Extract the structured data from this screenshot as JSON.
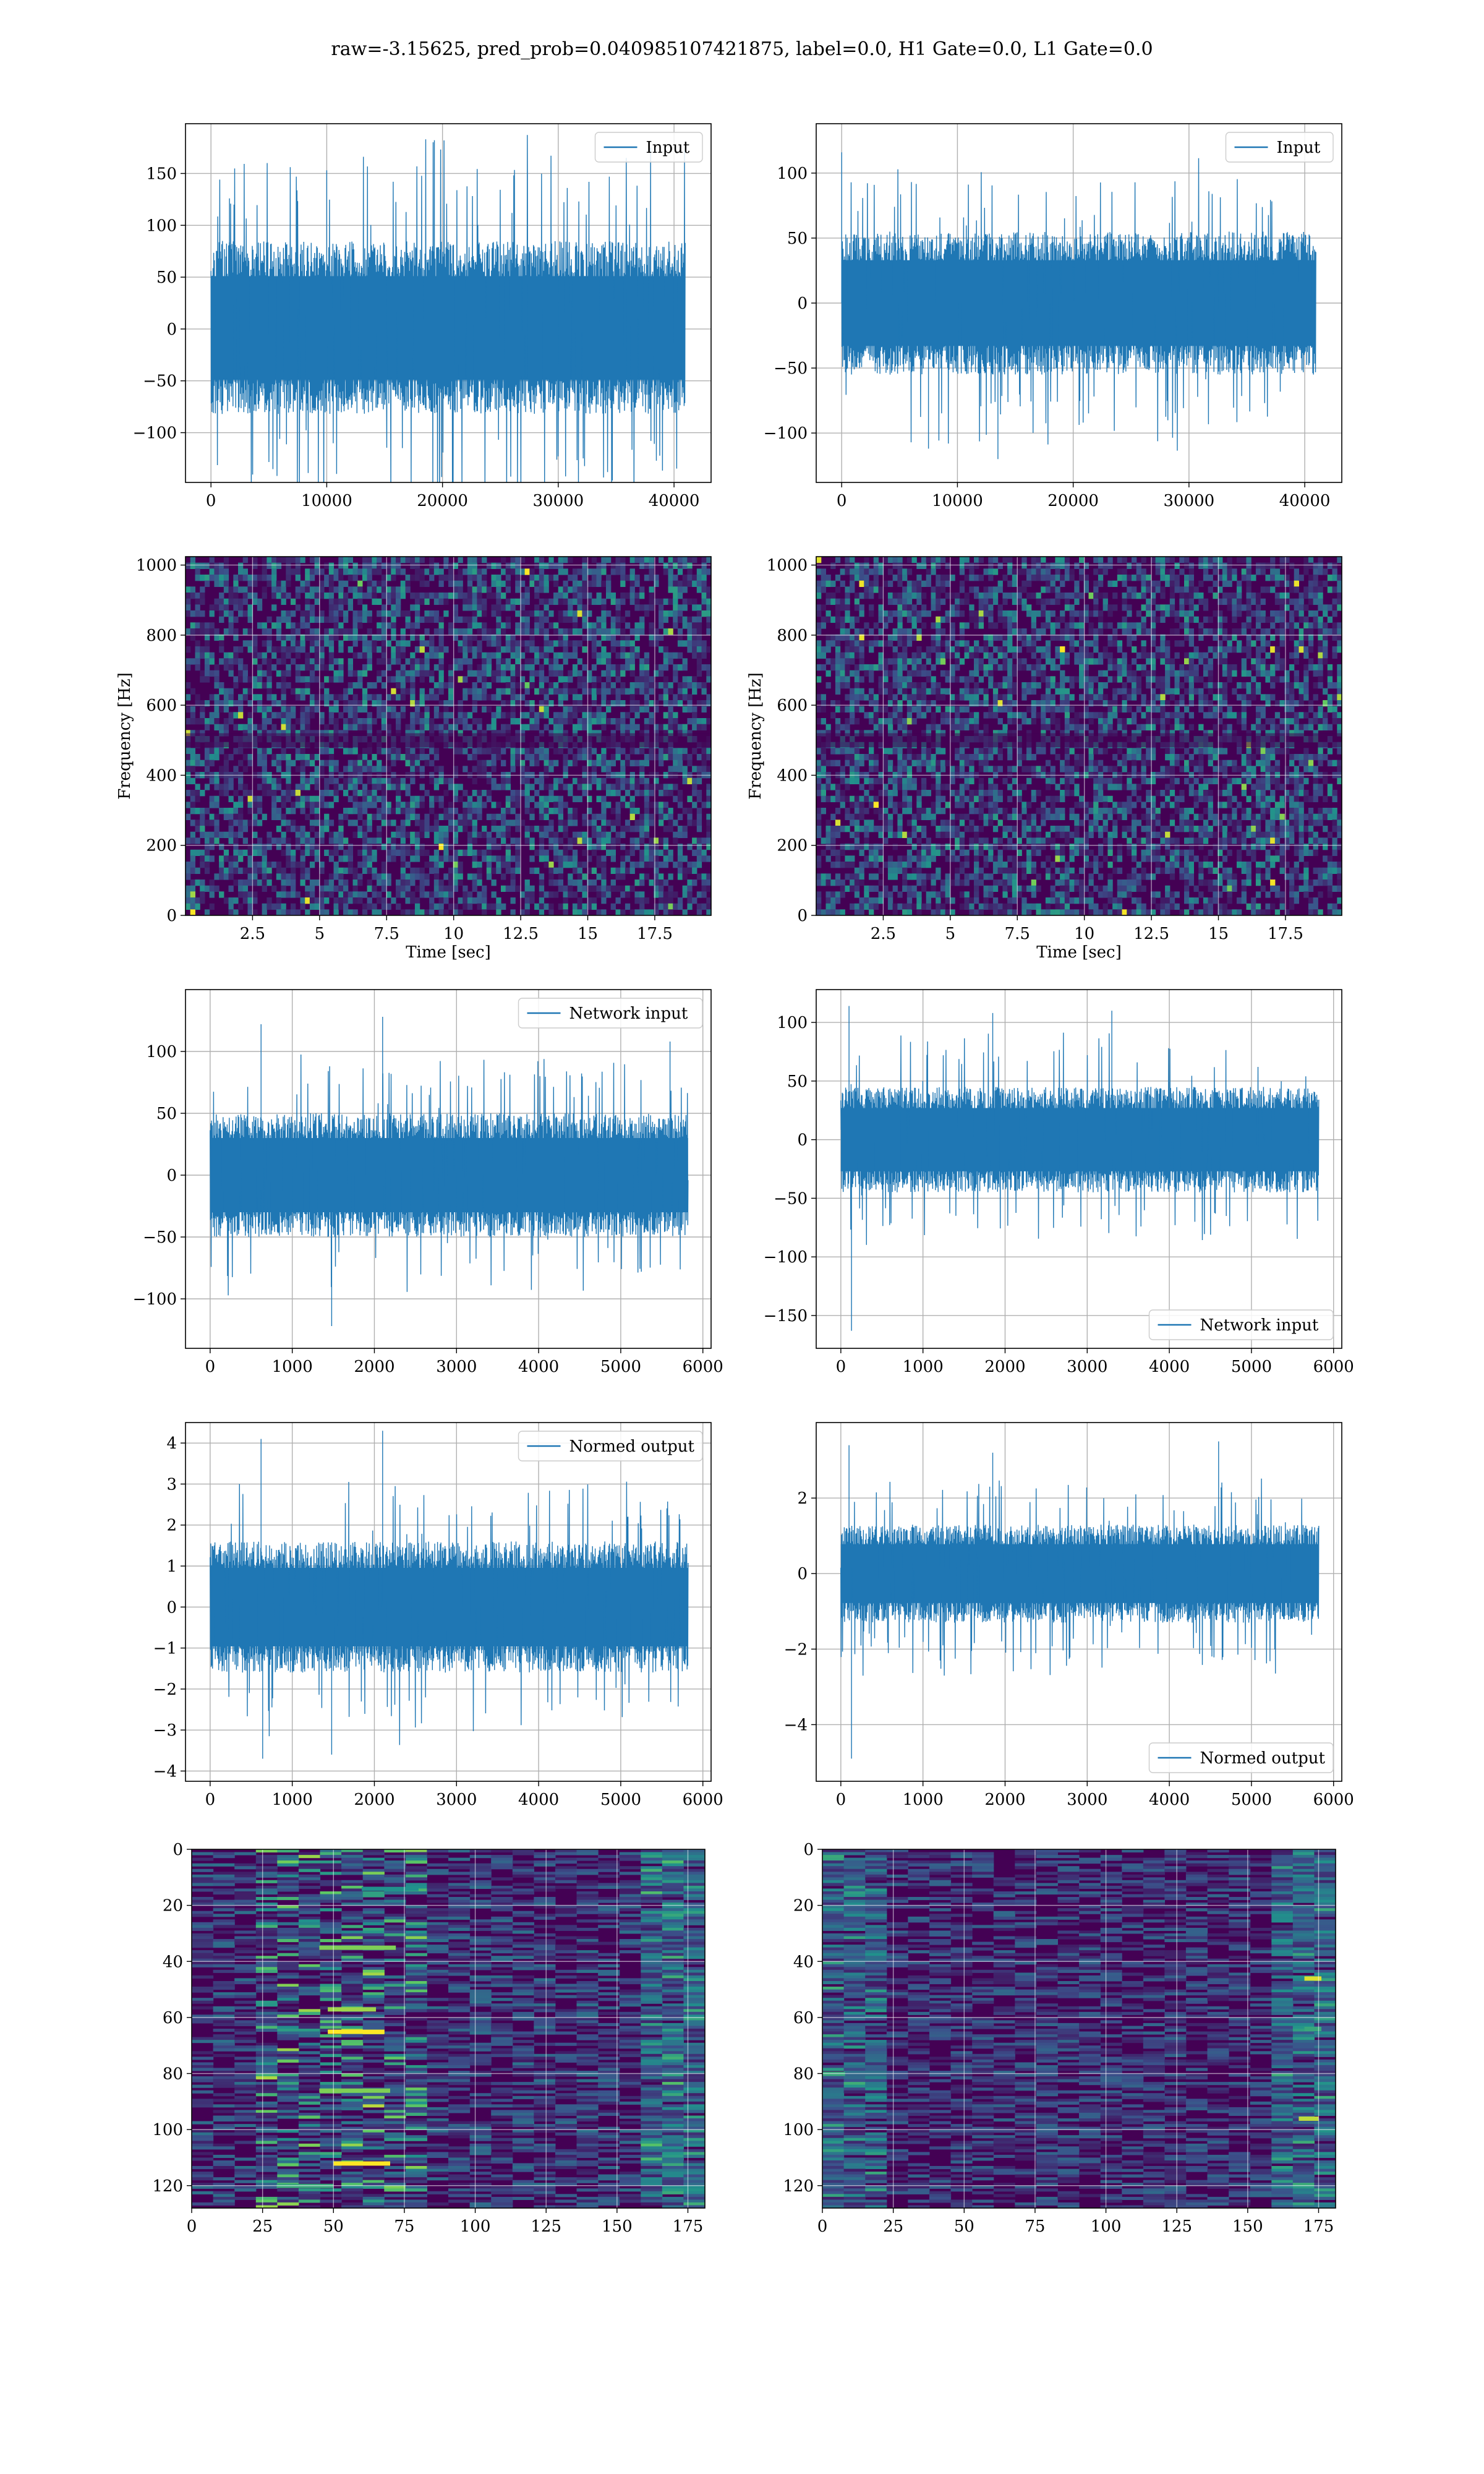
{
  "figure": {
    "title": "raw=-3.15625, pred_prob=0.040985107421875, label=0.0, H1 Gate=0.0, L1 Gate=0.0"
  },
  "colors": {
    "line": "#1f77b4",
    "viridis_dark": "#440154",
    "viridis_mid": "#21918c",
    "viridis_bright": "#fde725"
  },
  "chart_data": [
    {
      "id": "input-h1",
      "type": "line",
      "series_name": "Input",
      "legend": "upper-right",
      "x_range": [
        0,
        40960
      ],
      "y_range": [
        -130,
        185
      ],
      "xlim": [
        -2200,
        43200
      ],
      "ylim": [
        -148,
        198
      ],
      "envelope_hi": 85,
      "envelope_lo": -82,
      "noise_extreme": 110,
      "xticks": [
        0,
        10000,
        20000,
        30000,
        40000
      ],
      "yticks": [
        -100,
        -50,
        0,
        50,
        100,
        150
      ],
      "spikes": [
        [
          10000,
          153
        ],
        [
          19300,
          182
        ],
        [
          1600,
          126
        ],
        [
          26000,
          112
        ]
      ],
      "xlabel": "",
      "ylabel": "",
      "grid": true
    },
    {
      "id": "input-l1",
      "type": "line",
      "series_name": "Input",
      "legend": "upper-right",
      "x_range": [
        0,
        40960
      ],
      "y_range": [
        -122,
        117
      ],
      "xlim": [
        -2200,
        43200
      ],
      "ylim": [
        -138,
        138
      ],
      "envelope_hi": 55,
      "envelope_lo": -55,
      "noise_extreme": 60,
      "xticks": [
        0,
        10000,
        20000,
        30000,
        40000
      ],
      "yticks": [
        -100,
        -50,
        0,
        50,
        100
      ],
      "spikes": [
        [
          0,
          116
        ],
        [
          7500,
          -112
        ],
        [
          13500,
          -120
        ]
      ],
      "xlabel": "",
      "ylabel": "",
      "grid": true
    },
    {
      "id": "spectrogram-h1",
      "type": "heatmap",
      "seed": 7,
      "xlim": [
        0,
        19.6
      ],
      "ylim": [
        0,
        1024
      ],
      "xticks": [
        2.5,
        5.0,
        7.5,
        10.0,
        12.5,
        15.0,
        17.5
      ],
      "yticks": [
        0,
        200,
        400,
        600,
        800,
        1000
      ],
      "xlabel": "Time [sec]",
      "ylabel": "Frequency [Hz]",
      "grid": true
    },
    {
      "id": "spectrogram-l1",
      "type": "heatmap",
      "seed": 19,
      "xlim": [
        0,
        19.6
      ],
      "ylim": [
        0,
        1024
      ],
      "xticks": [
        2.5,
        5.0,
        7.5,
        10.0,
        12.5,
        15.0,
        17.5
      ],
      "yticks": [
        0,
        200,
        400,
        600,
        800,
        1000
      ],
      "xlabel": "Time [sec]",
      "ylabel": "Frequency [Hz]",
      "grid": true
    },
    {
      "id": "network-input-h1",
      "type": "line",
      "series_name": "Network input",
      "legend": "upper-right",
      "x_range": [
        0,
        5820
      ],
      "y_range": [
        -125,
        128
      ],
      "xlim": [
        -300,
        6100
      ],
      "ylim": [
        -140,
        150
      ],
      "envelope_hi": 50,
      "envelope_lo": -50,
      "noise_extreme": 55,
      "xticks": [
        0,
        1000,
        2000,
        3000,
        4000,
        5000,
        6000
      ],
      "yticks": [
        -100,
        -50,
        0,
        50,
        100
      ],
      "spikes": [
        [
          2100,
          128
        ],
        [
          620,
          122
        ],
        [
          1480,
          -122
        ],
        [
          5600,
          108
        ]
      ],
      "xlabel": "",
      "ylabel": "",
      "grid": true
    },
    {
      "id": "network-input-l1",
      "type": "line",
      "series_name": "Network input",
      "legend": "lower-right",
      "x_range": [
        0,
        5820
      ],
      "y_range": [
        -165,
        115
      ],
      "xlim": [
        -300,
        6100
      ],
      "ylim": [
        -178,
        128
      ],
      "envelope_hi": 45,
      "envelope_lo": -45,
      "noise_extreme": 50,
      "xticks": [
        0,
        1000,
        2000,
        3000,
        4000,
        5000,
        6000
      ],
      "yticks": [
        -150,
        -100,
        -50,
        0,
        50,
        100
      ],
      "spikes": [
        [
          100,
          114
        ],
        [
          130,
          -163
        ],
        [
          1850,
          108
        ],
        [
          3300,
          110
        ]
      ],
      "xlabel": "",
      "ylabel": "",
      "grid": true
    },
    {
      "id": "normed-output-h1",
      "type": "line",
      "series_name": "Normed output",
      "legend": "upper-right",
      "x_range": [
        0,
        5820
      ],
      "y_range": [
        -3.7,
        4.3
      ],
      "xlim": [
        -300,
        6100
      ],
      "ylim": [
        -4.25,
        4.5
      ],
      "envelope_hi": 1.6,
      "envelope_lo": -1.6,
      "noise_extreme": 1.8,
      "xticks": [
        0,
        1000,
        2000,
        3000,
        4000,
        5000,
        6000
      ],
      "yticks": [
        -4,
        -3,
        -2,
        -1,
        0,
        1,
        2,
        3,
        4
      ],
      "spikes": [
        [
          2100,
          4.3
        ],
        [
          620,
          4.1
        ],
        [
          640,
          -3.7
        ],
        [
          1480,
          -3.6
        ]
      ],
      "xlabel": "",
      "ylabel": "",
      "grid": true
    },
    {
      "id": "normed-output-l1",
      "type": "line",
      "series_name": "Normed output",
      "legend": "lower-right",
      "x_range": [
        0,
        5820
      ],
      "y_range": [
        -4.9,
        3.5
      ],
      "xlim": [
        -300,
        6100
      ],
      "ylim": [
        -5.5,
        4.0
      ],
      "envelope_hi": 1.3,
      "envelope_lo": -1.3,
      "noise_extreme": 1.5,
      "xticks": [
        0,
        1000,
        2000,
        3000,
        4000,
        5000,
        6000
      ],
      "yticks": [
        -4,
        -2,
        0,
        2
      ],
      "spikes": [
        [
          100,
          3.4
        ],
        [
          130,
          -4.9
        ],
        [
          1850,
          3.2
        ],
        [
          4600,
          3.5
        ]
      ],
      "xlabel": "",
      "ylabel": "",
      "grid": true
    },
    {
      "id": "feature-map-h1",
      "type": "heatmap",
      "seed": 31,
      "style": "bands-h1",
      "xlim": [
        0,
        181
      ],
      "ylim": [
        0,
        128
      ],
      "inverted_y": true,
      "xticks": [
        0,
        25,
        50,
        75,
        100,
        125,
        150,
        175
      ],
      "yticks": [
        0,
        20,
        40,
        60,
        80,
        100,
        120
      ],
      "xlabel": "",
      "ylabel": "",
      "grid": true
    },
    {
      "id": "feature-map-l1",
      "type": "heatmap",
      "seed": 43,
      "style": "bands-l1",
      "xlim": [
        0,
        181
      ],
      "ylim": [
        0,
        128
      ],
      "inverted_y": true,
      "xticks": [
        0,
        25,
        50,
        75,
        100,
        125,
        150,
        175
      ],
      "yticks": [
        0,
        20,
        40,
        60,
        80,
        100,
        120
      ],
      "xlabel": "",
      "ylabel": "",
      "grid": true
    }
  ]
}
